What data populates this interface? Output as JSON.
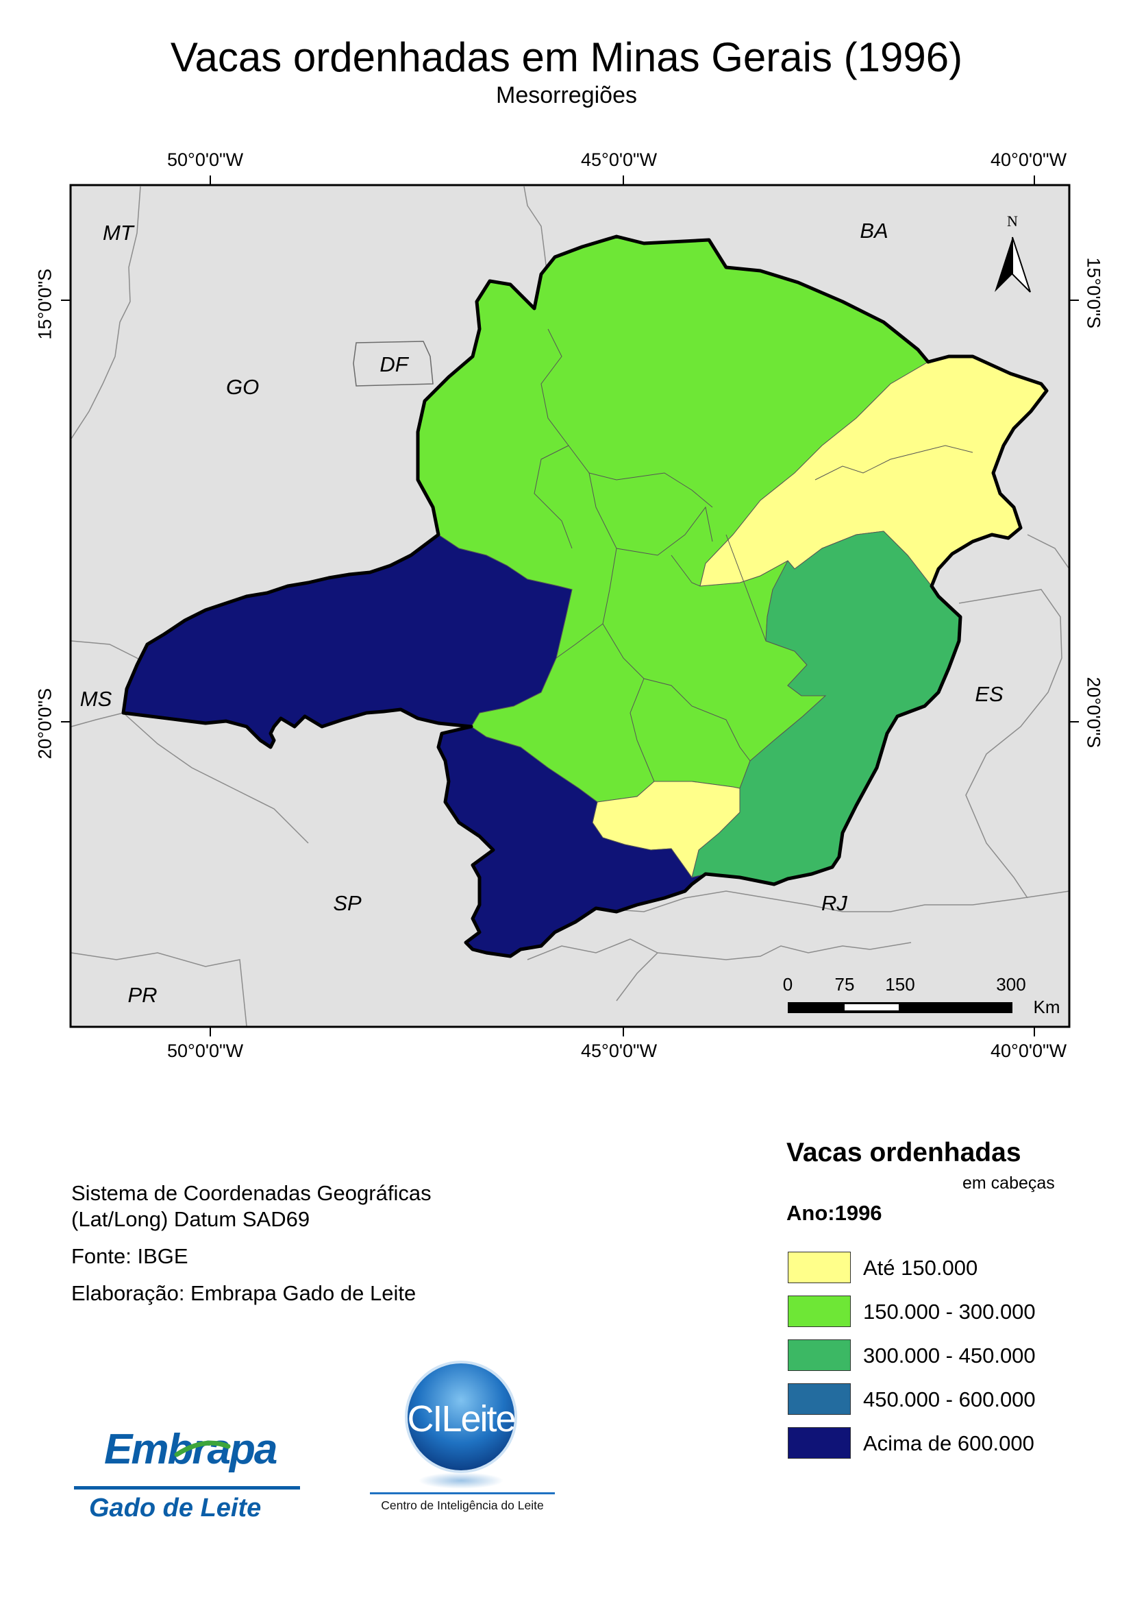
{
  "title": "Vacas ordenhadas em Minas Gerais (1996)",
  "subtitle": "Mesorregiões",
  "coords": {
    "lon_left": "50°0'0\"W",
    "lon_mid": "45°0'0\"W",
    "lon_right": "40°0'0\"W",
    "lat_top": "15°0'0\"S",
    "lat_bottom": "20°0'0\"S"
  },
  "states": {
    "mt": "MT",
    "go": "GO",
    "df": "DF",
    "ba": "BA",
    "ms": "MS",
    "es": "ES",
    "sp": "SP",
    "rj": "RJ",
    "pr": "PR"
  },
  "north_arrow": "N",
  "scale_bar": {
    "t0": "0",
    "t1": "75",
    "t2": "150",
    "t3": "300",
    "unit": "Km"
  },
  "info": {
    "crs_line1": "Sistema de Coordenadas Geográficas",
    "crs_line2": "(Lat/Long) Datum SAD69",
    "source": "Fonte: IBGE",
    "author": "Elaboração: Embrapa Gado de Leite"
  },
  "legend": {
    "title": "Vacas ordenhadas",
    "subtitle": "em cabeças",
    "year": "Ano:1996",
    "items": [
      {
        "label": "Até 150.000",
        "color": "#ffff8a"
      },
      {
        "label": "150.000 - 300.000",
        "color": "#6ee736"
      },
      {
        "label": "300.000 - 450.000",
        "color": "#3cb864"
      },
      {
        "label": "450.000 - 600.000",
        "color": "#236c9f"
      },
      {
        "label": "Acima de 600.000",
        "color": "#0f1377"
      }
    ]
  },
  "logos": {
    "embrapa_top": "Embrapa",
    "embrapa_bottom": "Gado de Leite",
    "cileite": "CILeite",
    "cileite_caption": "Centro de Inteligência do Leite"
  }
}
